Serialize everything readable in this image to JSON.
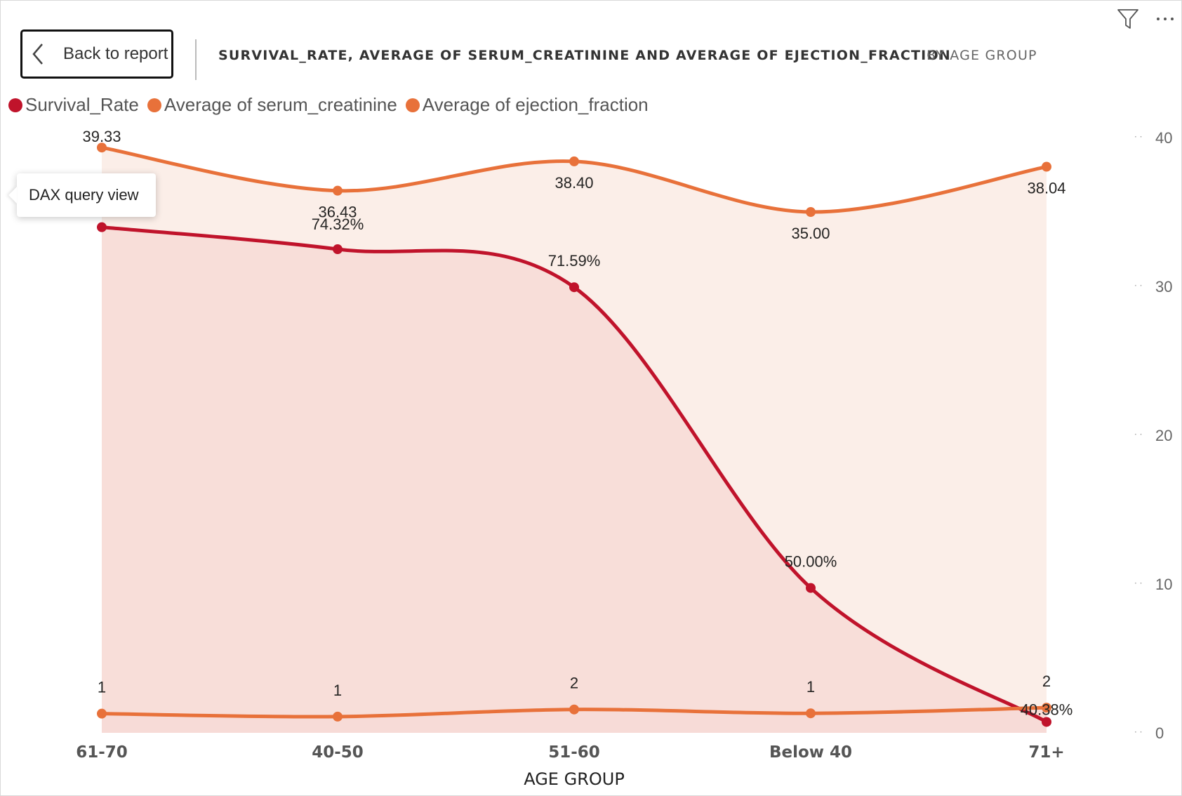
{
  "header": {
    "back_label": "Back to report",
    "title": "SURVIVAL_RATE, AVERAGE OF SERUM_CREATININE AND AVERAGE OF EJECTION_FRACTION",
    "subtitle": "BY AGE GROUP",
    "icons": [
      "chevron-left-icon",
      "filter-icon",
      "more-options-icon"
    ]
  },
  "tooltip": {
    "text": "DAX query view"
  },
  "legend": [
    {
      "label": "Survival_Rate",
      "color": "#C0132B"
    },
    {
      "label": "Average of serum_creatinine",
      "color": "#E8713A"
    },
    {
      "label": "Average of ejection_fraction",
      "color": "#E8713A"
    }
  ],
  "chart_data": {
    "type": "line",
    "xlabel": "AGE GROUP",
    "categories": [
      "61-70",
      "40-50",
      "51-60",
      "Below 40",
      "71+"
    ],
    "ylim": [
      0,
      40
    ],
    "yticks": [
      0,
      10,
      20,
      30,
      40
    ],
    "series": [
      {
        "name": "Average of ejection_fraction",
        "values": [
          39.33,
          36.43,
          38.4,
          35.0,
          38.04
        ],
        "labels": [
          "39.33",
          "36.43",
          "38.40",
          "35.00",
          "38.04"
        ],
        "color": "#E8713A",
        "fill": "#FBEEE8",
        "axis": "right"
      },
      {
        "name": "Survival_Rate",
        "values": [
          75.9,
          74.32,
          71.59,
          50.0,
          40.38
        ],
        "labels": [
          "75.90%",
          "74.32%",
          "71.59%",
          "50.00%",
          "40.38%"
        ],
        "color": "#C0132B",
        "fill": "#F7DAD6",
        "axis": "hidden",
        "range": [
          40,
          78
        ]
      },
      {
        "name": "Average of serum_creatinine",
        "values": [
          1.29,
          1.09,
          1.57,
          1.31,
          1.69
        ],
        "labels": [
          "1",
          "1",
          "2",
          "1",
          "2"
        ],
        "color": "#E8713A",
        "fill": "#F7DAD6",
        "axis": "right"
      }
    ]
  }
}
